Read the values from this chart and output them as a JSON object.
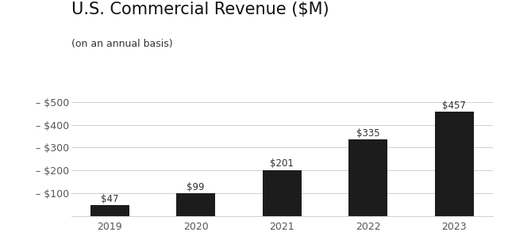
{
  "title": "U.S. Commercial Revenue ($M)",
  "subtitle": "(on an annual basis)",
  "categories": [
    "2019",
    "2020",
    "2021",
    "2022",
    "2023"
  ],
  "values": [
    47,
    99,
    201,
    335,
    457
  ],
  "labels": [
    "$47",
    "$99",
    "$201",
    "$335",
    "$457"
  ],
  "bar_color": "#1c1c1c",
  "background_color": "#ffffff",
  "ylim": [
    0,
    530
  ],
  "yticks": [
    100,
    200,
    300,
    400,
    500
  ],
  "ytick_labels": [
    "$100",
    "$200",
    "$300",
    "$400",
    "$500"
  ],
  "title_fontsize": 15,
  "subtitle_fontsize": 9,
  "tick_fontsize": 9,
  "label_fontsize": 8.5,
  "grid_color": "#d0d0d0",
  "text_color": "#333333",
  "axis_text_color": "#555555"
}
